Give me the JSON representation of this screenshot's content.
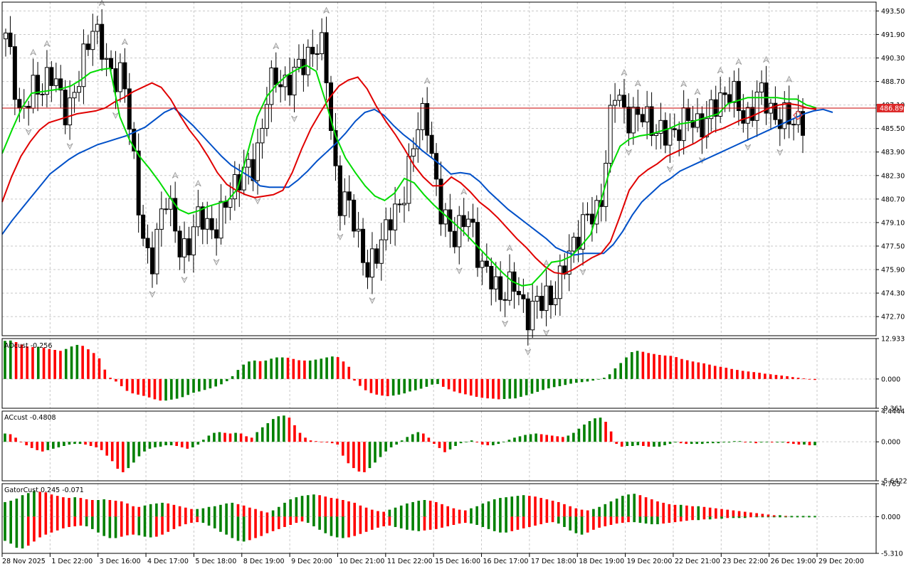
{
  "chart_data": [
    {
      "type": "candlestick",
      "pane": "price",
      "y_ticks": [
        "493.50",
        "491.90",
        "490.30",
        "488.70",
        "487.10",
        "485.50",
        "483.90",
        "482.30",
        "480.70",
        "479.10",
        "477.50",
        "475.90",
        "474.30",
        "472.70"
      ],
      "ylim": [
        471.4,
        494.1
      ],
      "current_price": "486.89",
      "close_path": [
        491.6,
        486.0,
        488.9,
        488.5,
        487.2,
        488.6,
        492.2,
        490.2,
        489.0,
        481.8,
        475.8,
        480.8,
        477.5,
        478.8,
        478.5,
        480.3,
        481.7,
        482.7,
        487.9,
        488.2,
        489.8,
        490.4,
        490.6,
        480.8,
        479.0,
        476.0,
        478.2,
        479.2,
        484.7,
        485.9,
        480.1,
        478.4,
        478.7,
        476.8,
        473.4,
        475.3,
        473.2,
        473.0,
        475.4,
        476.7,
        479.3,
        480.7,
        487.3,
        486.9,
        486.2,
        484.8,
        486.0,
        485.2,
        486.3,
        487.1,
        487.6,
        486.9,
        487.2,
        486.7,
        486.4,
        485.3
      ],
      "highs": [
        {
          "label": "493.55"
        },
        {
          "label": "492.27"
        },
        {
          "label": "492.23"
        },
        {
          "label": "490.09"
        },
        {
          "label": "481.92"
        },
        {
          "label": "477.24"
        },
        {
          "label": "489.72"
        },
        {
          "label": "488.68"
        },
        {
          "label": "489.23"
        },
        {
          "label": "486.25"
        },
        {
          "label": "479.04"
        },
        {
          "label": "489.12"
        },
        {
          "label": "488.54"
        },
        {
          "label": "487.62"
        },
        {
          "label": "488.72"
        }
      ],
      "alligator": [
        {
          "name": "jaw",
          "color": "#0050c8",
          "values": [
            478.3,
            479.2,
            480.0,
            480.8,
            481.6,
            482.4,
            482.9,
            483.4,
            483.8,
            484.1,
            484.4,
            484.6,
            484.8,
            485.0,
            485.3,
            485.6,
            486.1,
            486.6,
            486.9,
            486.3,
            485.7,
            485.0,
            484.3,
            483.6,
            483.0,
            482.6,
            482.2,
            481.6,
            481.5,
            481.5,
            481.5,
            482.0,
            482.6,
            483.3,
            483.9,
            484.5,
            485.2,
            486.0,
            486.6,
            486.8,
            486.4,
            485.7,
            485.1,
            484.6,
            484.0,
            483.5,
            483.0,
            482.4,
            482.5,
            482.4,
            481.9,
            481.2,
            480.6,
            480.0,
            479.5,
            479.0,
            478.5,
            478.0,
            477.4,
            477.1,
            476.9,
            477.0,
            477.0,
            477.0,
            477.6,
            478.5,
            479.6,
            480.5,
            481.1,
            481.7,
            482.1,
            482.6,
            482.9,
            483.2,
            483.5,
            483.8,
            484.1,
            484.4,
            484.7,
            485.0,
            485.3,
            485.6,
            485.9,
            486.2,
            486.5,
            486.7,
            486.8,
            486.6
          ]
        },
        {
          "name": "teeth",
          "color": "#e00000",
          "values": [
            480.5,
            482.2,
            483.6,
            484.6,
            485.4,
            485.9,
            486.1,
            486.3,
            486.5,
            486.6,
            486.7,
            486.9,
            487.3,
            487.6,
            488.0,
            488.3,
            488.6,
            488.3,
            487.5,
            486.4,
            485.4,
            484.6,
            483.6,
            482.5,
            481.7,
            481.3,
            481.0,
            480.8,
            480.9,
            481.0,
            481.3,
            482.5,
            484.1,
            485.5,
            486.6,
            487.6,
            488.4,
            488.8,
            489.0,
            488.2,
            487.0,
            486.0,
            485.1,
            484.1,
            483.0,
            482.2,
            481.6,
            481.6,
            482.2,
            481.8,
            481.2,
            480.5,
            480.0,
            479.4,
            478.7,
            478.0,
            477.4,
            476.7,
            476.1,
            475.7,
            475.6,
            475.9,
            476.3,
            476.7,
            477.0,
            477.8,
            479.5,
            481.3,
            482.2,
            482.7,
            483.1,
            483.6,
            483.9,
            484.2,
            484.5,
            484.9,
            485.3,
            485.5,
            485.8,
            486.1,
            486.3,
            486.6,
            486.9,
            487.1,
            487.2,
            487.1,
            486.9,
            486.8
          ]
        },
        {
          "name": "lips",
          "color": "#00dc00",
          "values": [
            483.8,
            485.4,
            486.9,
            487.9,
            488.0,
            488.1,
            488.2,
            488.4,
            488.8,
            489.3,
            489.5,
            489.6,
            486.3,
            484.7,
            483.6,
            482.8,
            481.9,
            480.9,
            480.0,
            479.7,
            479.9,
            480.2,
            480.4,
            480.6,
            481.4,
            483.8,
            486.3,
            487.7,
            488.5,
            489.1,
            489.5,
            489.8,
            489.4,
            487.3,
            485.0,
            483.5,
            482.5,
            481.6,
            480.9,
            480.6,
            481.1,
            482.1,
            481.8,
            481.0,
            480.3,
            479.7,
            479.1,
            478.5,
            477.8,
            477.1,
            476.4,
            475.7,
            475.1,
            474.8,
            474.9,
            475.6,
            476.4,
            476.5,
            476.8,
            477.5,
            478.3,
            480.5,
            482.8,
            484.3,
            484.8,
            485.0,
            485.1,
            485.3,
            485.5,
            485.8,
            485.9,
            486.1,
            486.3,
            486.5,
            487.2,
            487.4,
            487.6,
            487.6,
            487.6,
            487.6,
            487.5,
            487.5,
            487.1,
            486.9
          ]
        }
      ]
    },
    {
      "type": "histogram",
      "pane": "AOcust",
      "label": "AOcust -0.256",
      "y_ticks": [
        "12.933",
        "0.000",
        "-9.361"
      ],
      "ylim": [
        -9.361,
        12.933
      ],
      "values": [
        12.2,
        12.3,
        11.8,
        11.0,
        10.4,
        10.2,
        10.3,
        10.0,
        9.6,
        9.3,
        9.0,
        9.6,
        10.4,
        10.9,
        10.6,
        9.5,
        8.3,
        6.6,
        3.0,
        0.4,
        -0.8,
        -2.3,
        -3.8,
        -4.6,
        -5.0,
        -5.4,
        -5.9,
        -6.5,
        -6.9,
        -6.9,
        -6.6,
        -6.3,
        -5.8,
        -5.1,
        -4.4,
        -4.0,
        -3.5,
        -3.0,
        -2.4,
        -1.7,
        -0.7,
        0.9,
        2.9,
        4.6,
        5.6,
        5.9,
        5.7,
        5.9,
        6.5,
        6.9,
        6.9,
        6.8,
        6.4,
        6.0,
        5.9,
        5.9,
        6.2,
        6.5,
        6.9,
        7.2,
        7.0,
        5.6,
        3.9,
        -0.5,
        -2.2,
        -3.6,
        -4.5,
        -5.0,
        -5.3,
        -5.5,
        -5.3,
        -5.0,
        -4.6,
        -4.0,
        -3.6,
        -3.1,
        -2.5,
        -1.8,
        -1.6,
        -2.5,
        -3.3,
        -4.0,
        -4.5,
        -4.9,
        -5.3,
        -5.7,
        -6.0,
        -6.2,
        -6.3,
        -6.5,
        -6.4,
        -6.3,
        -6.2,
        -5.7,
        -5.2,
        -4.7,
        -4.1,
        -3.5,
        -3.0,
        -2.6,
        -2.3,
        -1.9,
        -1.5,
        -1.2,
        -1.0,
        -0.8,
        -0.5,
        -0.1,
        0.4,
        1.5,
        3.4,
        5.1,
        6.9,
        8.6,
        9.0,
        8.7,
        8.3,
        8.0,
        7.7,
        7.5,
        7.4,
        7.0,
        6.4,
        6.0,
        5.6,
        5.3,
        5.0,
        4.6,
        4.2,
        3.9,
        3.6,
        3.2,
        2.9,
        2.6,
        2.4,
        2.2,
        2.0,
        1.7,
        1.5,
        1.3,
        1.1,
        0.9,
        0.6,
        0.4,
        0.2,
        -0.1,
        -0.3
      ]
    },
    {
      "type": "histogram",
      "pane": "ACcust",
      "label": "ACcust -0.4808",
      "y_ticks": [
        "4.4444",
        "0.000",
        "-5.6422"
      ],
      "ylim": [
        -5.6422,
        4.4444
      ],
      "values": [
        1.2,
        1.1,
        0.6,
        0.0,
        -0.5,
        -0.9,
        -1.2,
        -1.4,
        -1.2,
        -1.0,
        -0.8,
        -0.6,
        -0.4,
        -0.3,
        -0.3,
        -0.4,
        -0.6,
        -0.8,
        -1.2,
        -2.0,
        -2.8,
        -3.9,
        -4.4,
        -3.8,
        -3.0,
        -2.1,
        -1.4,
        -1.0,
        -0.8,
        -0.7,
        -0.5,
        -0.5,
        -0.6,
        -0.8,
        -1.0,
        -0.8,
        -0.4,
        0.3,
        0.9,
        1.3,
        1.4,
        1.3,
        1.2,
        1.3,
        1.2,
        0.8,
        0.6,
        1.4,
        2.1,
        2.7,
        3.3,
        3.7,
        3.8,
        3.5,
        2.4,
        1.3,
        0.6,
        0.2,
        0.1,
        0.0,
        -0.1,
        -0.2,
        -0.4,
        -2.0,
        -3.1,
        -3.8,
        -4.3,
        -4.4,
        -3.8,
        -3.0,
        -2.2,
        -1.4,
        -0.8,
        -0.4,
        0.2,
        0.7,
        1.1,
        1.4,
        1.2,
        0.6,
        -0.3,
        -0.9,
        -1.5,
        -1.1,
        -0.6,
        -0.2,
        0.0,
        0.2,
        -0.1,
        -0.4,
        -0.5,
        -0.5,
        -0.3,
        0.0,
        0.3,
        0.6,
        0.8,
        1.0,
        1.1,
        1.2,
        1.1,
        1.0,
        0.9,
        0.8,
        0.7,
        0.9,
        1.3,
        1.9,
        2.5,
        3.0,
        3.4,
        3.5,
        2.9,
        1.5,
        -0.3,
        -0.7,
        -0.6,
        -0.6,
        -0.5,
        -0.6,
        -0.7,
        -0.7,
        -0.7,
        -0.5,
        -0.3,
        -0.1,
        -0.2,
        -0.3,
        -0.3,
        -0.3,
        -0.3,
        -0.2,
        -0.2,
        -0.2,
        -0.1,
        -0.1,
        0.1,
        0.1,
        -0.1,
        -0.1,
        -0.2,
        -0.1,
        0.0,
        -0.1,
        -0.1,
        -0.1,
        -0.2,
        -0.3,
        -0.4,
        -0.4,
        -0.5,
        -0.5
      ]
    },
    {
      "type": "histogram_dual",
      "pane": "GatorCust",
      "label": "GatorCust 0.245 -0.071",
      "y_ticks": [
        "4.765",
        "0.000",
        "-5.310"
      ],
      "ylim": [
        -5.31,
        4.765
      ],
      "upper_values": [
        2.1,
        2.3,
        2.6,
        3.1,
        3.4,
        3.7,
        3.6,
        3.5,
        3.2,
        3.0,
        2.8,
        2.7,
        2.8,
        2.7,
        2.5,
        2.4,
        2.4,
        2.5,
        2.4,
        2.3,
        2.2,
        1.9,
        1.5,
        1.4,
        1.6,
        1.8,
        1.9,
        2.0,
        1.9,
        1.7,
        1.5,
        1.3,
        1.1,
        1.1,
        1.2,
        1.4,
        1.5,
        1.7,
        1.9,
        2.0,
        1.8,
        1.6,
        1.3,
        1.1,
        0.8,
        0.6,
        0.9,
        1.4,
        2.0,
        2.5,
        2.8,
        3.0,
        3.1,
        3.2,
        3.1,
        2.9,
        2.7,
        2.6,
        2.4,
        2.2,
        2.0,
        1.6,
        1.3,
        1.0,
        0.8,
        0.7,
        1.0,
        1.3,
        1.6,
        1.9,
        2.1,
        2.3,
        2.4,
        2.3,
        2.1,
        1.8,
        1.5,
        1.2,
        1.0,
        0.9,
        1.2,
        1.5,
        1.9,
        2.2,
        2.5,
        2.7,
        2.8,
        2.9,
        3.0,
        3.1,
        3.0,
        2.9,
        2.7,
        2.5,
        2.3,
        2.1,
        1.8,
        1.5,
        1.2,
        1.0,
        0.9,
        1.1,
        1.4,
        1.8,
        2.2,
        2.6,
        3.0,
        3.2,
        3.3,
        3.1,
        2.8,
        2.5,
        2.2,
        2.0,
        1.8,
        1.7,
        1.7,
        1.6,
        1.5,
        1.5,
        1.4,
        1.3,
        1.2,
        1.1,
        1.0,
        0.9,
        0.8,
        0.7,
        0.6,
        0.5,
        0.4,
        0.3,
        0.2,
        0.2,
        0.1,
        0.1,
        0.1,
        0.1,
        0.1,
        0.1
      ],
      "lower_values": [
        -3.5,
        -3.9,
        -4.5,
        -4.6,
        -4.2,
        -3.6,
        -3.0,
        -2.6,
        -2.3,
        -2.0,
        -1.7,
        -1.5,
        -1.4,
        -1.3,
        -1.4,
        -1.8,
        -2.3,
        -2.8,
        -3.1,
        -3.1,
        -2.9,
        -2.7,
        -2.6,
        -2.7,
        -2.9,
        -3.0,
        -2.9,
        -2.6,
        -2.2,
        -1.8,
        -1.4,
        -1.1,
        -0.9,
        -0.8,
        -0.9,
        -1.3,
        -1.7,
        -2.2,
        -2.6,
        -3.1,
        -3.5,
        -3.6,
        -3.4,
        -3.1,
        -2.8,
        -2.4,
        -2.1,
        -1.8,
        -1.5,
        -1.2,
        -0.9,
        -0.7,
        -0.9,
        -1.4,
        -1.9,
        -2.4,
        -2.8,
        -3.0,
        -3.1,
        -3.0,
        -2.8,
        -2.5,
        -2.2,
        -1.9,
        -1.6,
        -1.4,
        -1.3,
        -1.5,
        -1.7,
        -1.9,
        -2.0,
        -2.1,
        -2.0,
        -1.9,
        -1.8,
        -1.6,
        -1.4,
        -1.2,
        -1.0,
        -0.9,
        -1.0,
        -1.2,
        -1.5,
        -1.8,
        -2.1,
        -2.3,
        -2.3,
        -2.1,
        -1.9,
        -1.7,
        -1.5,
        -1.3,
        -1.1,
        -0.9,
        -0.8,
        -1.0,
        -1.5,
        -2.0,
        -2.4,
        -2.6,
        -2.3,
        -1.9,
        -1.6,
        -1.4,
        -1.2,
        -1.0,
        -0.9,
        -0.8,
        -0.8,
        -0.9,
        -1.0,
        -1.1,
        -1.1,
        -1.0,
        -0.9,
        -0.8,
        -0.7,
        -0.6,
        -0.5,
        -0.5,
        -0.4,
        -0.4,
        -0.3,
        -0.3,
        -0.2,
        -0.2,
        -0.2,
        -0.2,
        -0.1,
        -0.1,
        -0.1,
        -0.1,
        -0.1,
        -0.1,
        -0.1,
        -0.1,
        -0.1,
        -0.1,
        -0.1,
        -0.1
      ]
    }
  ],
  "x_labels": [
    "28 Nov 2025",
    "1 Dec 22:00",
    "3 Dec 16:00",
    "4 Dec 17:00",
    "5 Dec 18:00",
    "8 Dec 19:00",
    "9 Dec 20:00",
    "10 Dec 21:00",
    "11 Dec 22:00",
    "15 Dec 16:00",
    "16 Dec 17:00",
    "17 Dec 18:00",
    "18 Dec 19:00",
    "19 Dec 20:00",
    "22 Dec 21:00",
    "23 Dec 22:00",
    "26 Dec 19:00",
    "29 Dec 20:00"
  ],
  "colors": {
    "up": "#008000",
    "down": "#ff0000",
    "grid": "#c8c8c8",
    "price_line": "#c80000",
    "price_badge": "#dc2828",
    "fractal": "#969696"
  }
}
